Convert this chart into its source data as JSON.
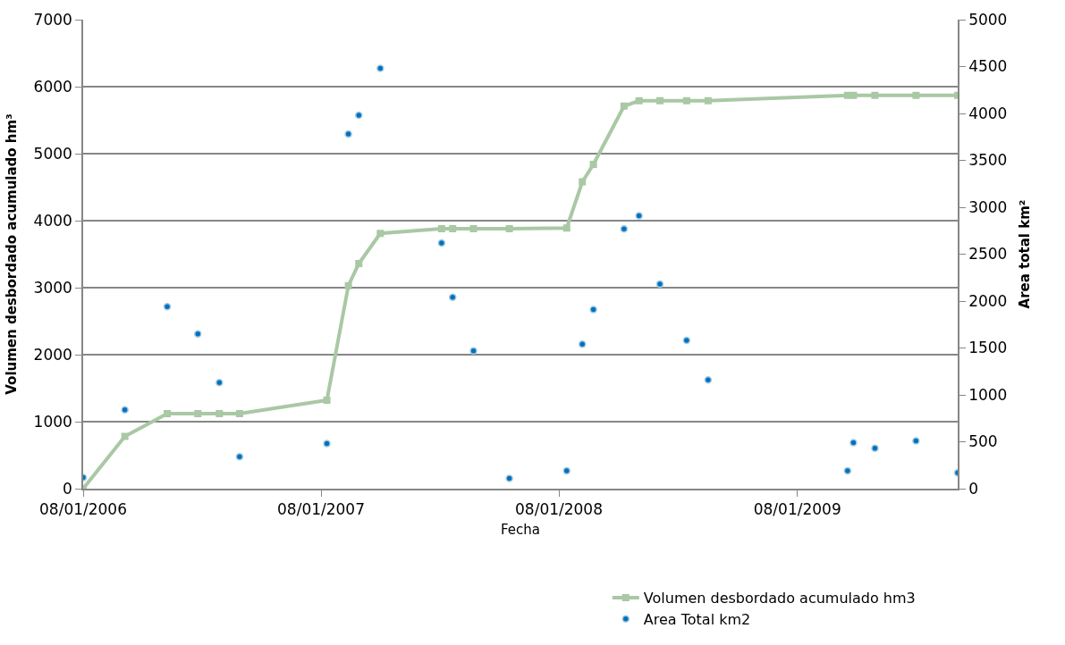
{
  "chart_data": {
    "type": "line",
    "xlabel": "Fecha",
    "ylabel": "Volumen desbordado acumulado hm³",
    "y2label": "Area total km²",
    "x": [
      "2006-01-08",
      "2006-03-13",
      "2006-05-17",
      "2006-07-03",
      "2006-08-05",
      "2006-09-05",
      "2007-01-17",
      "2007-02-19",
      "2007-03-07",
      "2007-04-09",
      "2007-07-12",
      "2007-07-29",
      "2007-08-30",
      "2007-10-24",
      "2008-01-20",
      "2008-02-13",
      "2008-03-01",
      "2008-04-17",
      "2008-05-10",
      "2008-06-11",
      "2008-07-22",
      "2008-08-24",
      "2009-03-26",
      "2009-04-04",
      "2009-05-07",
      "2009-07-09",
      "2009-09-11"
    ],
    "series": [
      {
        "name": "Volumen desbordado acumulado hm3",
        "color": "#a9c8a4",
        "marker": "square",
        "line_style": "solid",
        "values": [
          0,
          780,
          1120,
          1120,
          1120,
          1120,
          1320,
          3030,
          3360,
          3810,
          3880,
          3880,
          3880,
          3880,
          3890,
          4580,
          4840,
          5710,
          5790,
          5790,
          5790,
          5790,
          5870,
          5870,
          5870,
          5870,
          5870
        ]
      },
      {
        "name": "Area Total km2",
        "type": "scatter",
        "axis": "y2",
        "color": "#0070c0",
        "marker": "circle",
        "values": [
          120,
          840,
          1940,
          1650,
          1130,
          340,
          480,
          3780,
          3980,
          4480,
          2620,
          2040,
          1470,
          110,
          190,
          1540,
          1910,
          2770,
          2910,
          2180,
          1580,
          1160,
          190,
          490,
          430,
          510,
          170
        ]
      }
    ],
    "xlim": [
      "2006-01-08",
      "2009-09-11"
    ],
    "xticks": [
      {
        "value": "2006-01-08",
        "label": "08/01/2006"
      },
      {
        "value": "2007-01-08",
        "label": "08/01/2007"
      },
      {
        "value": "2008-01-08",
        "label": "08/01/2008"
      },
      {
        "value": "2009-01-08",
        "label": "08/01/2009"
      }
    ],
    "ylim": [
      0,
      7000
    ],
    "yticks": [
      0,
      1000,
      2000,
      3000,
      4000,
      5000,
      6000,
      7000
    ],
    "y2lim": [
      0,
      5000
    ],
    "y2ticks": [
      0,
      500,
      1000,
      1500,
      2000,
      2500,
      3000,
      3500,
      4000,
      4500,
      5000
    ],
    "grid": "y",
    "legend": "bottom right"
  }
}
